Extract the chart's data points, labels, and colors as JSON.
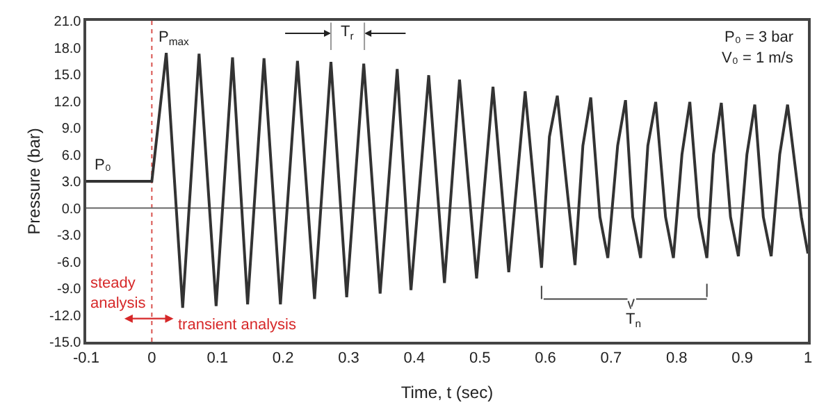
{
  "chart_data": {
    "type": "line",
    "xlabel": "Time, t (sec)",
    "ylabel": "Pressure (bar)",
    "xlim": [
      -0.1,
      1
    ],
    "xticks": [
      -0.1,
      0,
      0.1,
      0.2,
      0.3,
      0.4,
      0.5,
      0.6,
      0.7,
      0.8,
      0.9,
      1
    ],
    "ylim": [
      -15,
      21
    ],
    "yticks": [
      {
        "value": -15,
        "label": "-15.0"
      },
      {
        "value": -12,
        "label": "-12.0"
      },
      {
        "value": -9,
        "label": "-9.0"
      },
      {
        "value": -6,
        "label": "-6.0"
      },
      {
        "value": -3,
        "label": "-3.0"
      },
      {
        "value": 0,
        "label": "0.0"
      },
      {
        "value": 3,
        "label": "3.0"
      },
      {
        "value": 6,
        "label": "6.0"
      },
      {
        "value": 9,
        "label": "9.0"
      },
      {
        "value": 12,
        "label": "12.0"
      },
      {
        "value": 15,
        "label": "15.0"
      },
      {
        "value": 18,
        "label": "18.0"
      },
      {
        "value": 21,
        "label": "21.0"
      }
    ],
    "grid": false,
    "marker": "none",
    "line_style": "solid",
    "series": [
      {
        "color": "#333333",
        "x": [
          -0.1,
          0,
          0.022,
          0.047,
          0.072,
          0.098,
          0.123,
          0.146,
          0.171,
          0.196,
          0.222,
          0.248,
          0.273,
          0.297,
          0.323,
          0.348,
          0.374,
          0.395,
          0.422,
          0.446,
          0.469,
          0.495,
          0.52,
          0.544,
          0.569,
          0.594,
          0.606,
          0.618,
          0.645,
          0.657,
          0.669,
          0.683,
          0.695,
          0.71,
          0.722,
          0.733,
          0.745,
          0.756,
          0.768,
          0.783,
          0.795,
          0.808,
          0.82,
          0.834,
          0.846,
          0.856,
          0.868,
          0.882,
          0.894,
          0.907,
          0.919,
          0.932,
          0.944,
          0.957,
          0.969,
          0.99,
          1.0
        ],
        "values": [
          3,
          3,
          17.4,
          -11.2,
          17.3,
          -11.0,
          16.9,
          -10.8,
          16.8,
          -10.8,
          16.5,
          -10.2,
          16.4,
          -10.0,
          16.2,
          -9.6,
          15.6,
          -9.2,
          14.9,
          -8.4,
          14.4,
          -7.9,
          13.6,
          -7.2,
          13.1,
          -6.7,
          8,
          12.6,
          -6.4,
          7,
          12.4,
          -1,
          -5.6,
          7,
          12.1,
          -1,
          -5.6,
          7,
          11.9,
          -1,
          -5.6,
          6,
          11.9,
          -1,
          -5.6,
          6,
          11.8,
          -1,
          -5.4,
          6,
          11.6,
          -1,
          -5.4,
          6,
          11.6,
          -1,
          -5.1
        ]
      }
    ],
    "ref_lines": [
      {
        "axis": "x",
        "value": 0,
        "color": "#d9534f",
        "line_style": "dotted"
      },
      {
        "axis": "y",
        "value": 0,
        "color": "#666666",
        "line_style": "solid"
      }
    ],
    "annotations": [
      {
        "text": "P₀",
        "x": -0.075,
        "y": 3
      },
      {
        "text": "P$_{max}$",
        "x": 0.022,
        "y": 17.4
      },
      "T$_{r}$",
      "P₀ = 3 bar",
      "V₀ = 1 m/s",
      "steady analysis",
      "transient analysis",
      "T$_{n}$"
    ]
  }
}
